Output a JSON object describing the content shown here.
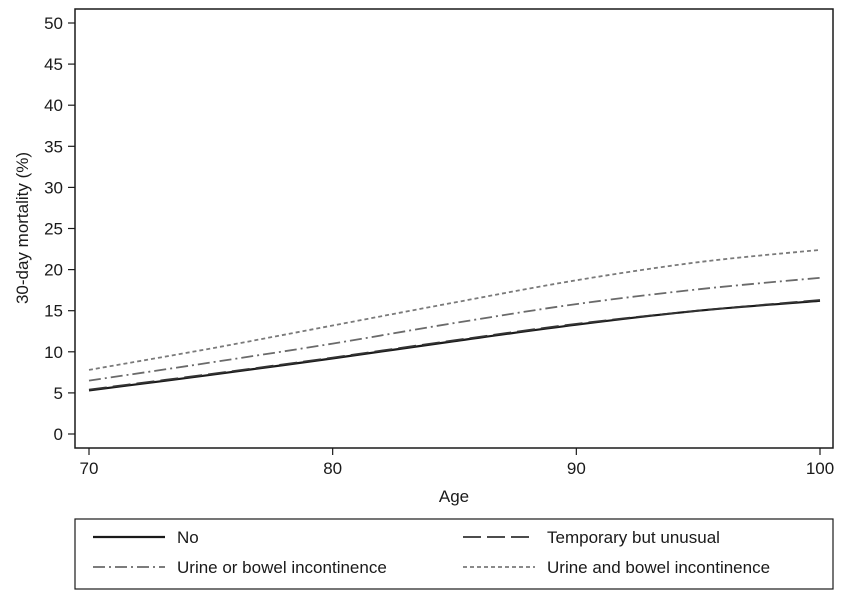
{
  "chart_data": {
    "type": "line",
    "xlabel": "Age",
    "ylabel": "30-day mortality (%)",
    "xlim": [
      70,
      100
    ],
    "ylim": [
      0,
      50
    ],
    "xticks": [
      70,
      80,
      90,
      100
    ],
    "yticks": [
      0,
      5,
      10,
      15,
      20,
      25,
      30,
      35,
      40,
      45,
      50
    ],
    "grid": false,
    "legend_placement": "bottom",
    "x": [
      70,
      75,
      80,
      85,
      90,
      95,
      100
    ],
    "series": [
      {
        "name": "No",
        "style": "solid",
        "color": "#1a1a1a",
        "values": [
          5.3,
          7.2,
          9.2,
          11.3,
          13.3,
          15.0,
          16.2
        ]
      },
      {
        "name": "Temporary but unusual",
        "style": "longdash",
        "color": "#333333",
        "values": [
          5.4,
          7.3,
          9.3,
          11.4,
          13.4,
          15.0,
          16.3
        ]
      },
      {
        "name": "Urine or bowel incontinence",
        "style": "dashdot",
        "color": "#6a6a6a",
        "values": [
          6.5,
          8.7,
          11.0,
          13.5,
          15.8,
          17.6,
          19.0
        ]
      },
      {
        "name": "Urine and bowel incontinence",
        "style": "dotted",
        "color": "#7a7a7a",
        "values": [
          7.8,
          10.4,
          13.2,
          16.0,
          18.7,
          20.9,
          22.4
        ]
      }
    ]
  }
}
